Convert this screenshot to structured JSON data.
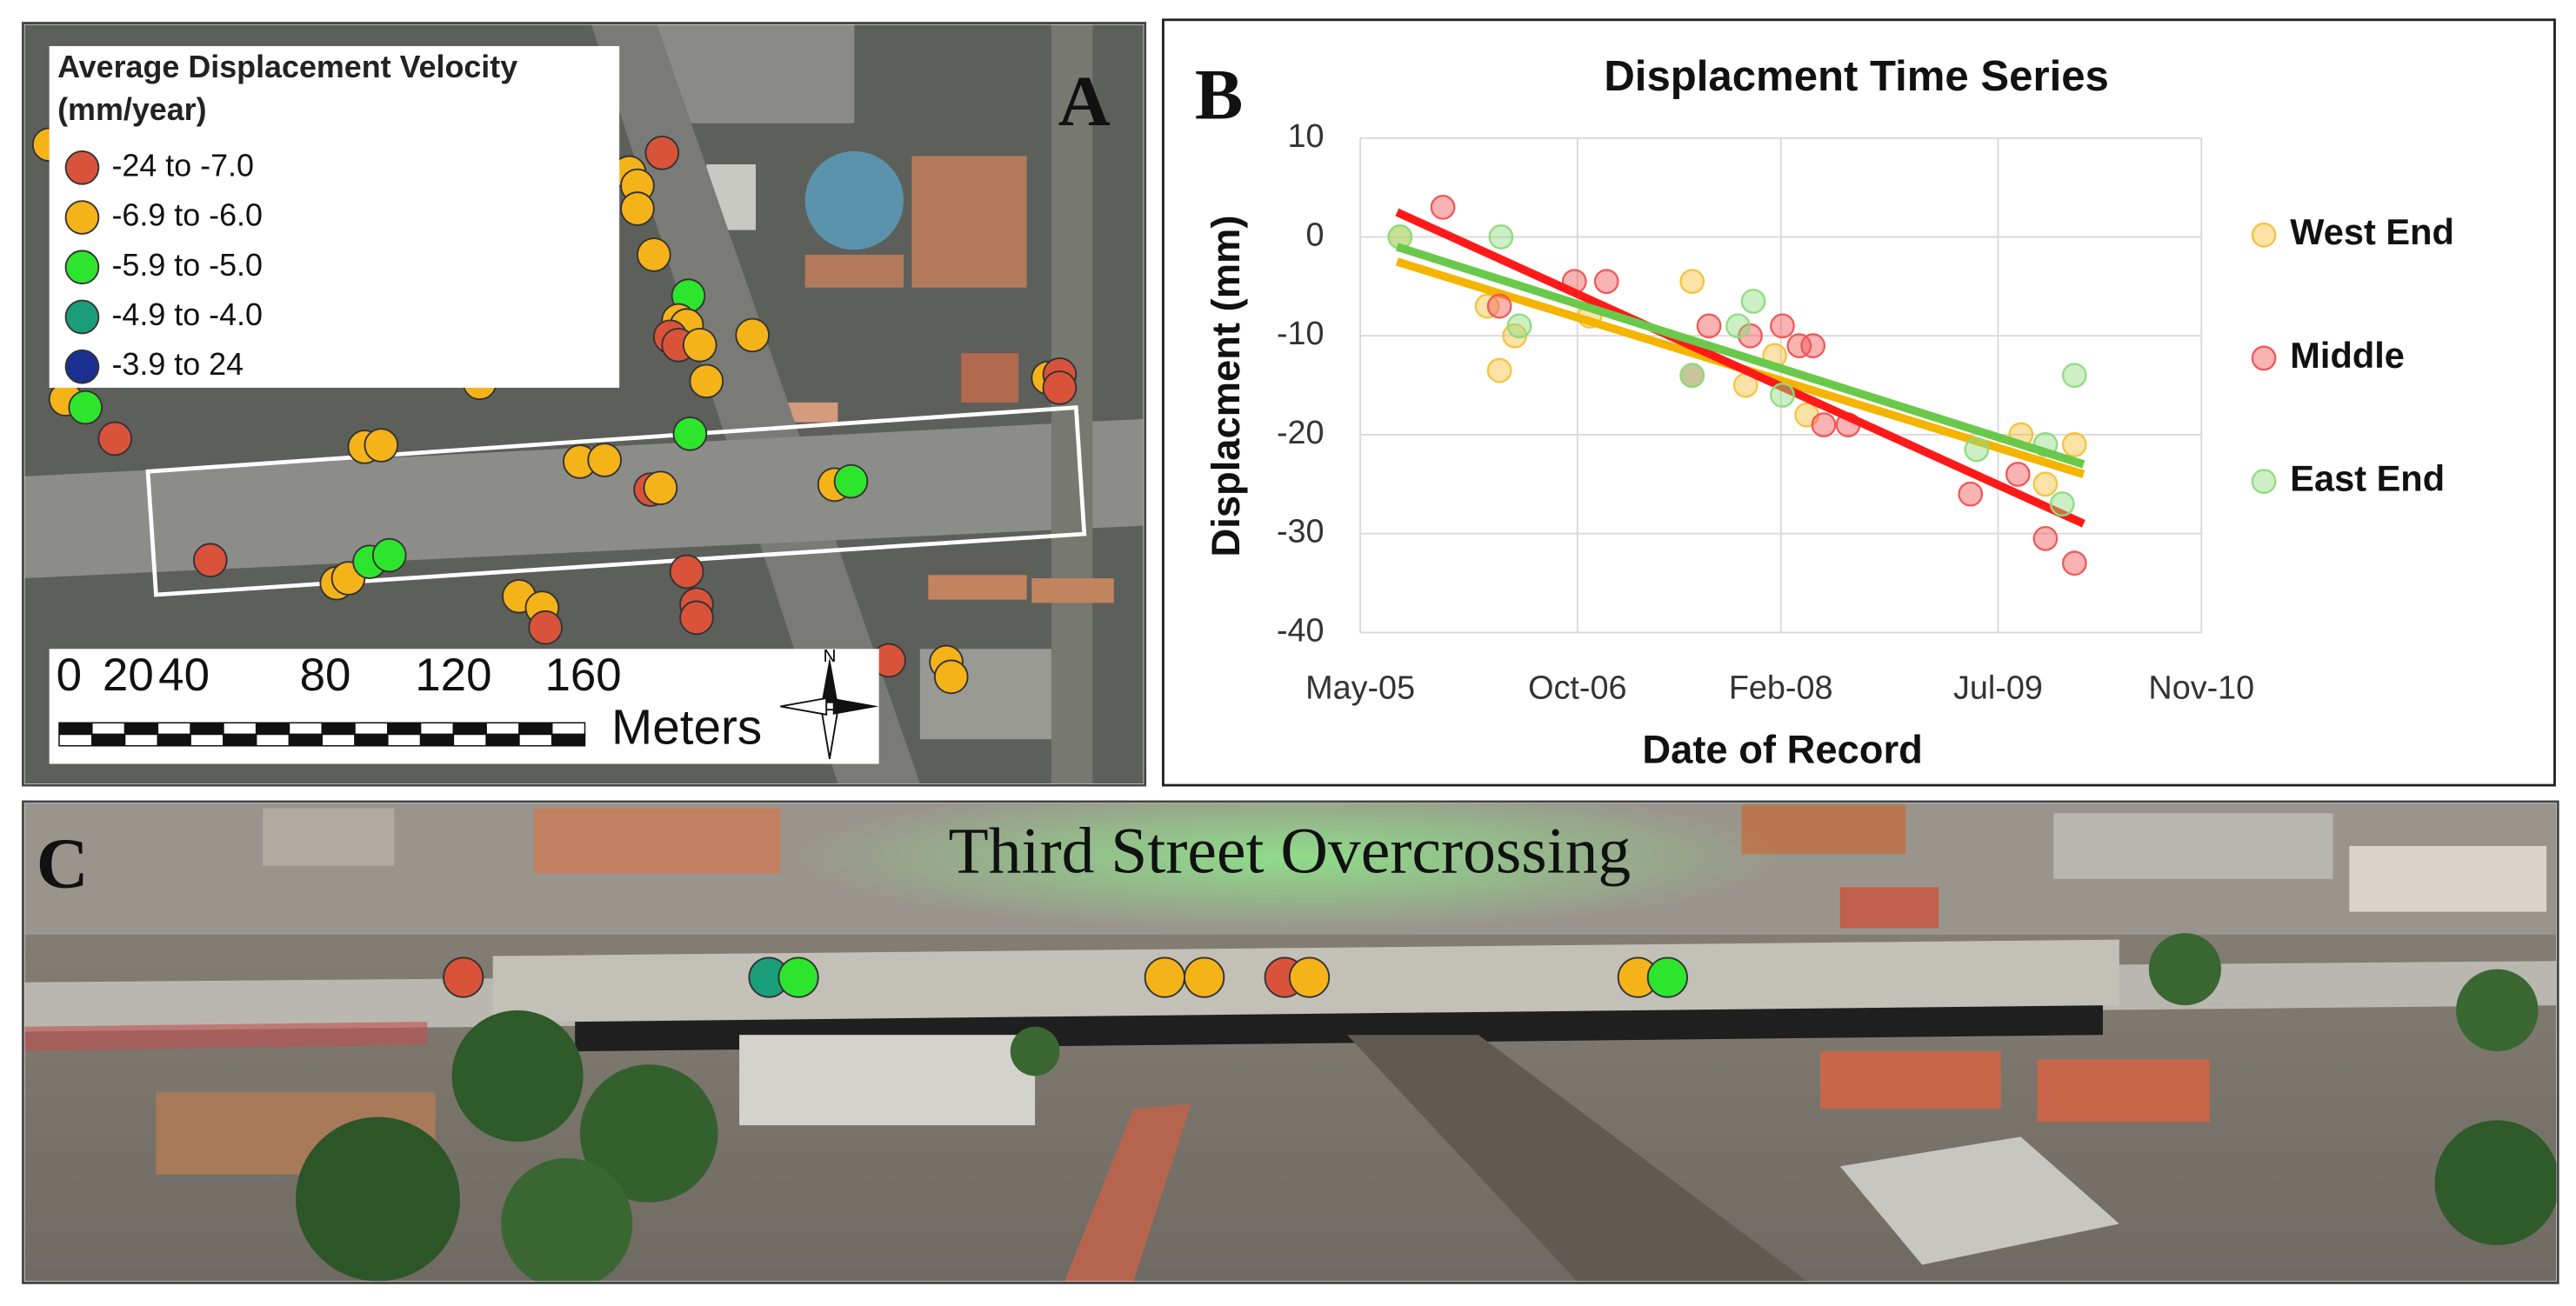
{
  "panels": {
    "a": "A",
    "b": "B",
    "c": "C"
  },
  "map": {
    "legend_title": [
      "Average Displacement Velocity",
      "(mm/year)"
    ],
    "legend": [
      {
        "label": "-24 to -7.0",
        "color": "#d9533b"
      },
      {
        "label": "-6.9 to -6.0",
        "color": "#f5b31a"
      },
      {
        "label": "-5.9 to -5.0",
        "color": "#2ee52e"
      },
      {
        "label": "-4.9 to -4.0",
        "color": "#1a9e7a"
      },
      {
        "label": "-3.9 to 24",
        "color": "#1a2f8f"
      }
    ],
    "scale_labels": [
      "0",
      "20",
      "40",
      "80",
      "120",
      "160"
    ],
    "scale_unit": "Meters",
    "north": "N"
  },
  "photo": {
    "title": "Third Street Overcrossing"
  },
  "chart_data": {
    "type": "scatter",
    "title": "Displacment Time Series",
    "x_label": "Date of Record",
    "y_label": "Displacment (mm)",
    "xlim": [
      2005.33,
      2010.83
    ],
    "xticks": [
      {
        "value": 2005.33,
        "label": "May-05"
      },
      {
        "value": 2006.75,
        "label": "Oct-06"
      },
      {
        "value": 2008.08,
        "label": "Feb-08"
      },
      {
        "value": 2009.5,
        "label": "Jul-09"
      },
      {
        "value": 2010.83,
        "label": "Nov-10"
      }
    ],
    "ylim": [
      -40,
      10
    ],
    "yticks": [
      -40,
      -30,
      -20,
      -10,
      0,
      10
    ],
    "grid": true,
    "legend": "right",
    "series": [
      {
        "name": "West End",
        "color": "#f7c23c",
        "line_color": "#f5b400",
        "x": [
          2005.59,
          2006.16,
          2006.24,
          2006.34,
          2006.83,
          2007.5,
          2007.85,
          2008.04,
          2008.25,
          2009.65,
          2009.81,
          2010.0
        ],
        "values": [
          0,
          -7,
          -13.5,
          -10,
          -8,
          -4.5,
          -15,
          -12,
          -18,
          -20,
          -25,
          -21
        ],
        "trend": {
          "x": [
            2005.57,
            2010.06
          ],
          "values": [
            -2.5,
            -24
          ]
        }
      },
      {
        "name": "Middle",
        "color": "#f25757",
        "line_color": "#ff1a1a",
        "x": [
          2005.87,
          2006.24,
          2006.73,
          2006.94,
          2007.5,
          2007.61,
          2007.88,
          2008.09,
          2008.2,
          2008.29,
          2008.36,
          2008.52,
          2009.32,
          2009.63,
          2009.81,
          2010.0
        ],
        "values": [
          3,
          -7,
          -4.5,
          -4.5,
          -14,
          -9,
          -10,
          -9,
          -11,
          -11,
          -19,
          -19,
          -26,
          -24,
          -30.5,
          -33
        ],
        "trend": {
          "x": [
            2005.57,
            2010.06
          ],
          "values": [
            2.5,
            -29
          ]
        }
      },
      {
        "name": "East End",
        "color": "#8fdc7f",
        "line_color": "#6ac94a",
        "x": [
          2005.59,
          2006.25,
          2006.37,
          2007.5,
          2007.9,
          2007.8,
          2008.09,
          2009.36,
          2009.81,
          2009.92,
          2010.0
        ],
        "values": [
          0,
          0,
          -9,
          -14,
          -6.5,
          -9,
          -16,
          -21.5,
          -21,
          -27,
          -14
        ],
        "trend": {
          "x": [
            2005.57,
            2010.06
          ],
          "values": [
            -1,
            -23
          ]
        }
      }
    ]
  }
}
